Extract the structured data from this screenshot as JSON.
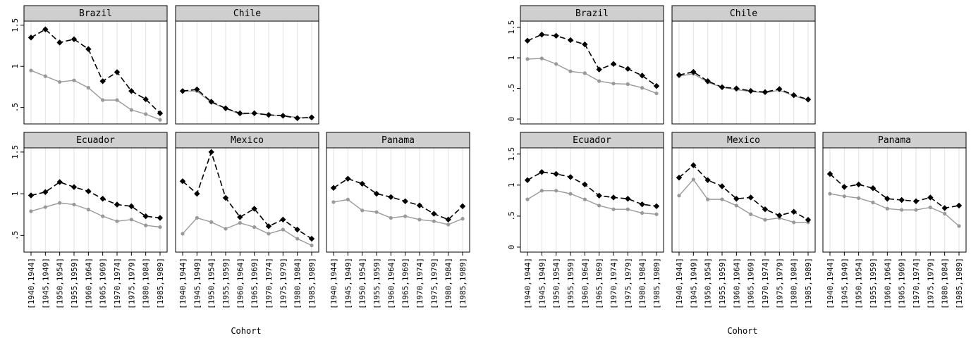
{
  "chart_data": [
    {
      "type": "line",
      "xlabel": "Cohort",
      "ylim": [
        0.3,
        1.55
      ],
      "yticks": [
        0.5,
        1,
        1.5
      ],
      "ytick_labels": [
        ".5",
        "1",
        "1.5"
      ],
      "categories": [
        "[1940,1944]",
        "[1945,1949]",
        "[1950,1954]",
        "[1955,1959]",
        "[1960,1964]",
        "[1965,1969]",
        "[1970,1974]",
        "[1975,1979]",
        "[1980,1984]",
        "[1985,1989]"
      ],
      "series_colors": {
        "dashed": "#000000",
        "solid": "#999999"
      },
      "panels": [
        {
          "title": "Brazil",
          "dashed": [
            1.35,
            1.45,
            1.29,
            1.33,
            1.21,
            0.82,
            0.93,
            0.7,
            0.6,
            0.43
          ],
          "solid": [
            0.95,
            0.88,
            0.81,
            0.83,
            0.74,
            0.59,
            0.59,
            0.47,
            0.42,
            0.35
          ]
        },
        {
          "title": "Chile",
          "dashed": [
            0.7,
            0.72,
            0.57,
            0.49,
            0.43,
            0.43,
            0.41,
            0.4,
            0.37,
            0.38
          ],
          "solid": [
            0.7,
            0.7,
            0.56,
            0.49,
            0.42,
            0.43,
            0.41,
            0.4,
            0.38,
            0.37
          ]
        },
        {
          "title": "Ecuador",
          "dashed": [
            0.98,
            1.02,
            1.14,
            1.08,
            1.03,
            0.94,
            0.87,
            0.85,
            0.73,
            0.71
          ],
          "solid": [
            0.79,
            0.84,
            0.89,
            0.87,
            0.81,
            0.73,
            0.67,
            0.69,
            0.62,
            0.6
          ]
        },
        {
          "title": "Mexico",
          "dashed": [
            1.15,
            1.0,
            1.5,
            0.95,
            0.72,
            0.82,
            0.61,
            0.69,
            0.57,
            0.46
          ],
          "solid": [
            0.52,
            0.71,
            0.66,
            0.58,
            0.65,
            0.6,
            0.52,
            0.57,
            0.46,
            0.38
          ]
        },
        {
          "title": "Panama",
          "dashed": [
            1.07,
            1.18,
            1.12,
            1.0,
            0.96,
            0.91,
            0.86,
            0.76,
            0.69,
            0.85
          ],
          "solid": [
            0.9,
            0.93,
            0.8,
            0.78,
            0.71,
            0.73,
            0.69,
            0.67,
            0.63,
            0.7
          ]
        }
      ]
    },
    {
      "type": "line",
      "xlabel": "Cohort",
      "ylim": [
        -0.08,
        1.6
      ],
      "yticks": [
        0,
        0.5,
        1,
        1.5
      ],
      "ytick_labels": [
        "0",
        ".5",
        "1",
        "1.5"
      ],
      "categories": [
        "[1940,1944]",
        "[1945,1949]",
        "[1950,1954]",
        "[1955,1959]",
        "[1960,1964]",
        "[1965,1969]",
        "[1970,1974]",
        "[1975,1979]",
        "[1980,1984]",
        "[1985,1989]"
      ],
      "series_colors": {
        "dashed": "#000000",
        "solid": "#999999"
      },
      "panels": [
        {
          "title": "Brazil",
          "dashed": [
            1.28,
            1.38,
            1.36,
            1.29,
            1.22,
            0.81,
            0.9,
            0.82,
            0.71,
            0.54
          ],
          "solid": [
            0.98,
            0.99,
            0.9,
            0.78,
            0.75,
            0.62,
            0.58,
            0.57,
            0.51,
            0.42
          ]
        },
        {
          "title": "Chile",
          "dashed": [
            0.72,
            0.77,
            0.62,
            0.52,
            0.5,
            0.46,
            0.44,
            0.49,
            0.39,
            0.32
          ],
          "solid": [
            0.7,
            0.74,
            0.6,
            0.52,
            0.48,
            0.45,
            0.43,
            0.47,
            0.38,
            0.31
          ]
        },
        {
          "title": "Ecuador",
          "dashed": [
            1.08,
            1.21,
            1.18,
            1.13,
            1.01,
            0.83,
            0.8,
            0.78,
            0.69,
            0.66
          ],
          "solid": [
            0.77,
            0.91,
            0.91,
            0.86,
            0.77,
            0.67,
            0.61,
            0.61,
            0.55,
            0.53
          ]
        },
        {
          "title": "Mexico",
          "dashed": [
            1.12,
            1.32,
            1.08,
            0.98,
            0.78,
            0.8,
            0.61,
            0.51,
            0.57,
            0.44
          ],
          "solid": [
            0.83,
            1.09,
            0.77,
            0.77,
            0.67,
            0.53,
            0.44,
            0.47,
            0.4,
            0.4
          ]
        },
        {
          "title": "Panama",
          "dashed": [
            1.18,
            0.97,
            1.01,
            0.95,
            0.78,
            0.76,
            0.74,
            0.8,
            0.63,
            0.67
          ],
          "solid": [
            0.86,
            0.82,
            0.79,
            0.72,
            0.62,
            0.6,
            0.6,
            0.64,
            0.54,
            0.34
          ]
        }
      ]
    }
  ]
}
